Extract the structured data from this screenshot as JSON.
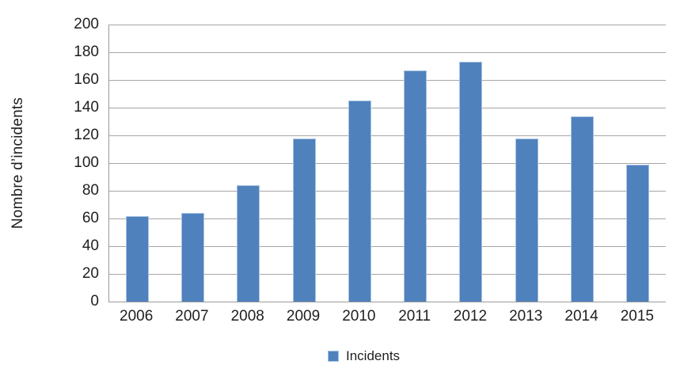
{
  "chart_data": {
    "type": "bar",
    "title": "",
    "categories": [
      "2006",
      "2007",
      "2008",
      "2009",
      "2010",
      "2011",
      "2012",
      "2013",
      "2014",
      "2015"
    ],
    "series": [
      {
        "name": "Incidents",
        "values": [
          62,
          64,
          84,
          118,
          145,
          167,
          173,
          118,
          134,
          99
        ]
      }
    ],
    "xlabel": "",
    "ylabel": "Nombre d’incidents",
    "ylim": [
      0,
      200
    ],
    "ytick_step": 20,
    "grid": true,
    "legend_position": "bottom-center",
    "colors": {
      "bar_fill": "#4f81bd",
      "bar_border": "#a7c4e0",
      "gridline": "#a6a6a6",
      "axis_line": "#9a9a9a",
      "text": "#1f1f1f"
    }
  },
  "legend": {
    "label": "Incidents"
  }
}
